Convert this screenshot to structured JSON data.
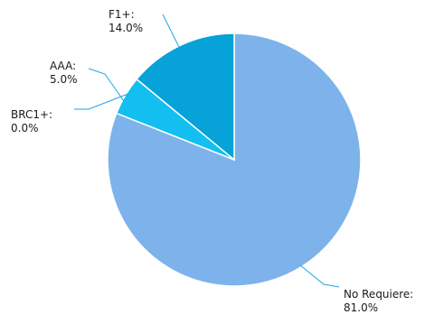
{
  "chart_data": {
    "type": "pie",
    "title": "",
    "slices": [
      {
        "label": "No Requiere",
        "value": 81.0,
        "display": "81.0%",
        "color": "#7db3ea"
      },
      {
        "label": "BRC1+",
        "value": 0.0,
        "display": "0.0%",
        "color": "#3ca0e0"
      },
      {
        "label": "AAA",
        "value": 5.0,
        "display": "5.0%",
        "color": "#12bff0"
      },
      {
        "label": "F1+",
        "value": 14.0,
        "display": "14.0%",
        "color": "#07a2d8"
      }
    ],
    "start_direction": "top",
    "direction": "clockwise",
    "label_style": "outside-with-leader-lines",
    "legend": "none",
    "leader_line_color": "#1fa6e0",
    "slice_border_color": "#ffffff"
  }
}
